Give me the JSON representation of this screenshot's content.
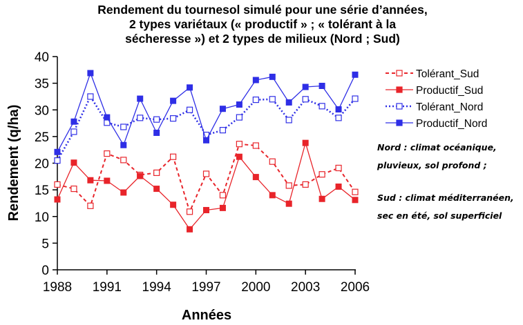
{
  "chart_data": {
    "type": "line",
    "title_lines": [
      "Rendement du tournesol simulé pour une série d’années,",
      "2 types variétaux (« productif » ; « tolérant à la",
      "sécheresse ») et 2 types de milieux (Nord ; Sud)"
    ],
    "xlabel": "Années",
    "ylabel": "Rendement (q/ha)",
    "xlim": [
      1988,
      2006
    ],
    "ylim": [
      0,
      40
    ],
    "x_ticks": [
      "1988",
      "1991",
      "1994",
      "1997",
      "2000",
      "2003",
      "2006"
    ],
    "y_ticks": [
      "0",
      "5",
      "10",
      "15",
      "20",
      "25",
      "30",
      "35",
      "40"
    ],
    "grid": false,
    "legend_position": "right",
    "x": [
      1988,
      1989,
      1990,
      1991,
      1992,
      1993,
      1994,
      1995,
      1996,
      1997,
      1998,
      1999,
      2000,
      2001,
      2002,
      2003,
      2004,
      2005,
      2006
    ],
    "series": [
      {
        "name": "Tolérant_Sud",
        "color": "#e8242a",
        "line_style": "dashed",
        "marker": "open-square",
        "values": [
          16.0,
          15.2,
          12.0,
          21.8,
          20.6,
          17.8,
          18.2,
          21.2,
          10.9,
          18.0,
          14.0,
          23.6,
          23.3,
          20.3,
          15.8,
          16.0,
          17.9,
          19.1,
          14.6
        ]
      },
      {
        "name": "Productif_Sud",
        "color": "#e8242a",
        "line_style": "solid",
        "marker": "filled-square",
        "values": [
          13.2,
          20.1,
          16.8,
          16.7,
          14.5,
          17.6,
          15.2,
          12.2,
          7.6,
          11.2,
          11.6,
          21.2,
          17.4,
          14.0,
          12.4,
          23.8,
          13.3,
          15.6,
          13.1
        ]
      },
      {
        "name": "Tolérant_Nord",
        "color": "#2e2ee6",
        "line_style": "dotted",
        "marker": "open-square",
        "values": [
          20.5,
          25.9,
          32.5,
          27.6,
          26.8,
          28.5,
          28.2,
          28.4,
          30.0,
          25.3,
          26.2,
          28.6,
          31.9,
          32.0,
          28.1,
          32.0,
          30.7,
          28.5,
          32.1
        ]
      },
      {
        "name": "Productif_Nord",
        "color": "#2e2ee6",
        "line_style": "solid",
        "marker": "filled-square",
        "values": [
          22.1,
          27.8,
          36.9,
          28.6,
          23.4,
          32.1,
          25.7,
          31.7,
          34.2,
          24.3,
          30.2,
          31.0,
          35.6,
          36.2,
          31.4,
          34.3,
          34.5,
          30.1,
          36.6
        ]
      }
    ],
    "annotations": [
      "Nord : climat océanique,",
      "pluvieux, sol profond ;",
      "Sud : climat méditerranéen,",
      "sec en été, sol superficiel"
    ]
  }
}
